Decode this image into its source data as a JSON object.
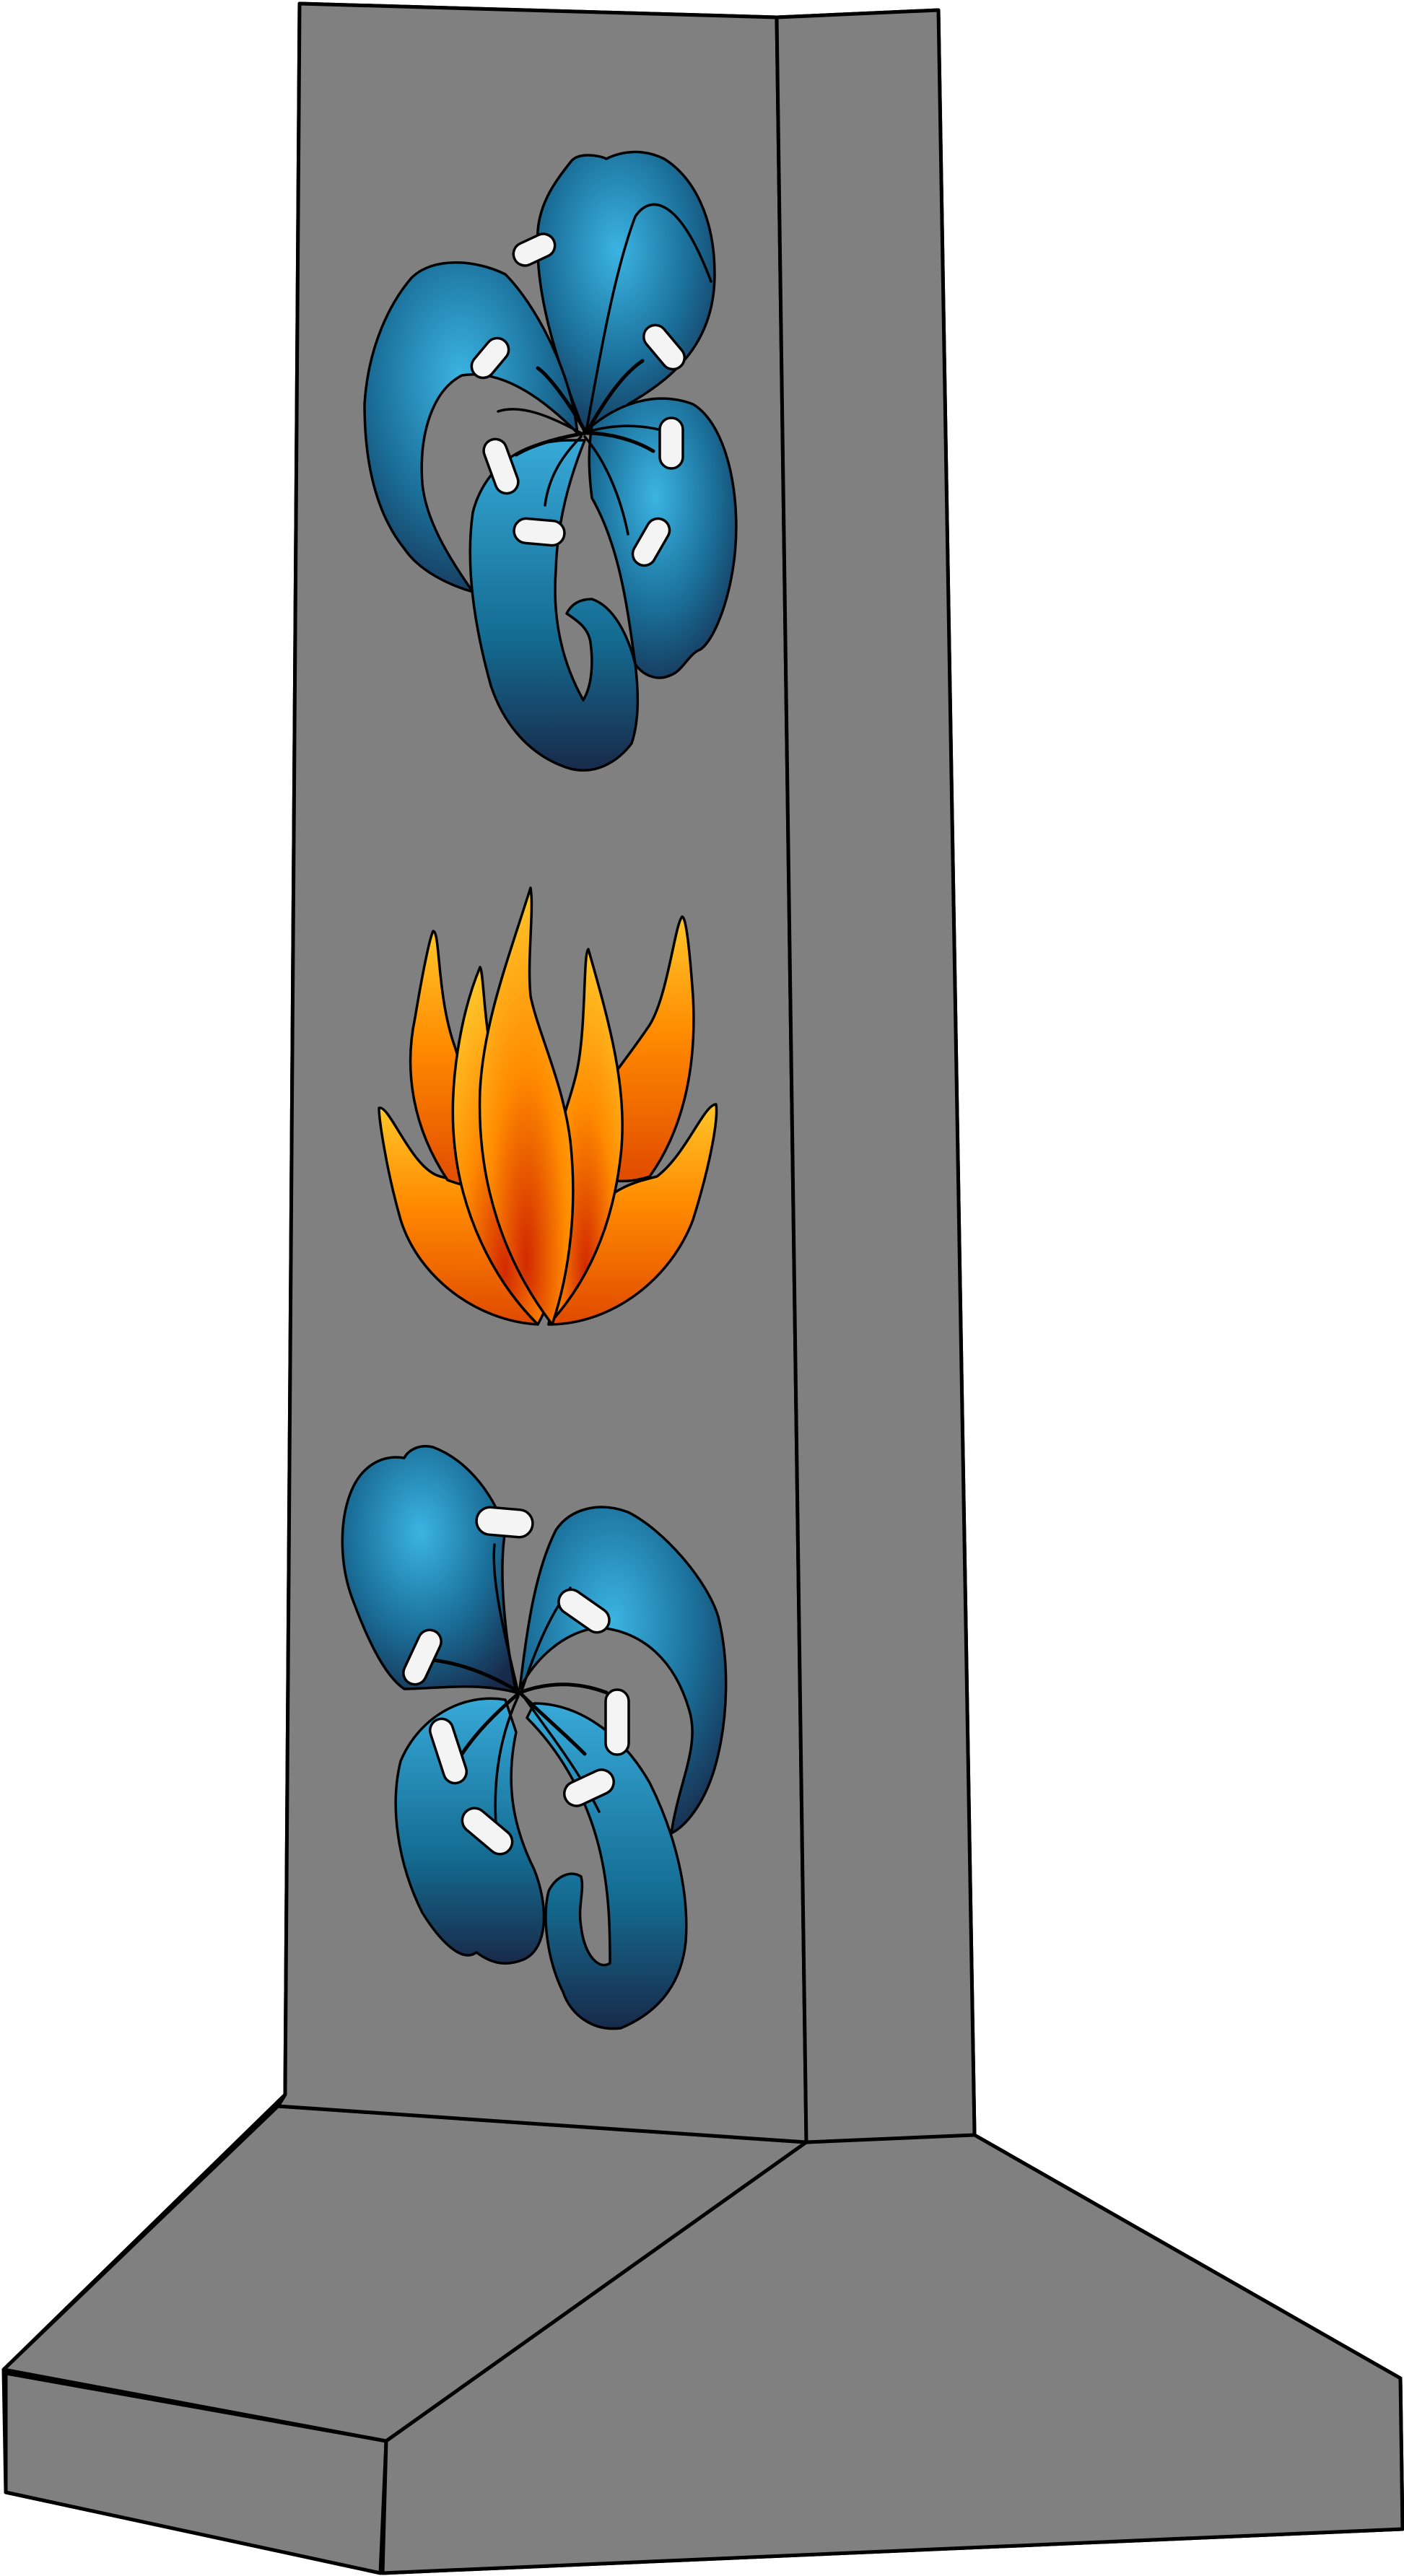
{
  "illustration": {
    "subject": "monument-with-flowers",
    "colors": {
      "stone": "#808080",
      "outline": "#000000",
      "blue_light": "#3bb4e3",
      "blue_dark": "#172a4a",
      "orange_light": "#ffc52a",
      "orange_dark": "#d22a00",
      "stamen": "#f4f4f4"
    },
    "decorations": [
      {
        "name": "blue-lily",
        "position_label": "top"
      },
      {
        "name": "orange-flame-flower",
        "position_label": "middle"
      },
      {
        "name": "blue-lily",
        "position_label": "bottom"
      }
    ]
  }
}
